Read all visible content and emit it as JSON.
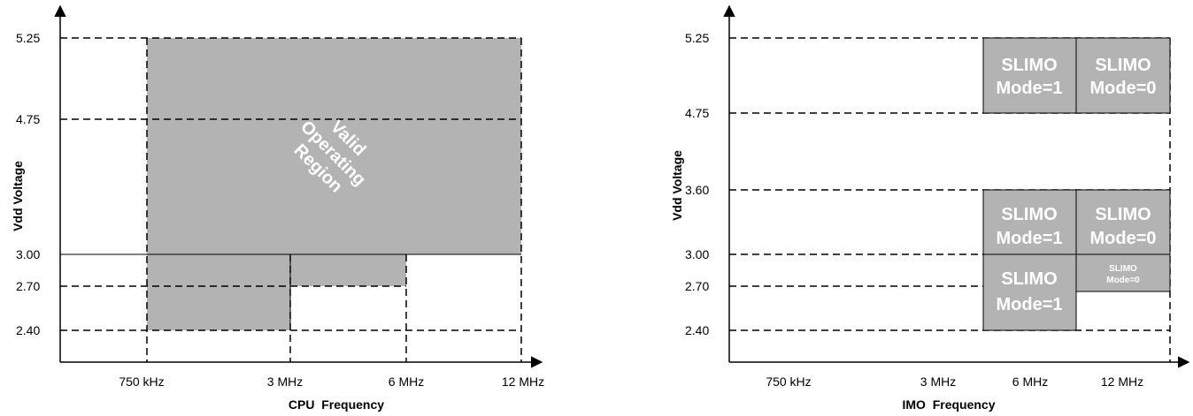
{
  "colors": {
    "region_fill": "#b3b3b3",
    "line": "#000000",
    "text_on_region": "#ffffff"
  },
  "cpu_chart": {
    "ylabel": "Vdd Voltage",
    "xlabel": "CPU  Frequency",
    "yticks": [
      "5.25",
      "4.75",
      "3.00",
      "2.70",
      "2.40"
    ],
    "xticks": [
      "750 kHz",
      "3 MHz",
      "6 MHz",
      "12 MHz"
    ],
    "region_label": [
      "Valid",
      "Operating",
      "Region"
    ]
  },
  "imo_chart": {
    "ylabel": "Vdd Voltage",
    "xlabel": "IMO  Frequency",
    "yticks": [
      "5.25",
      "4.75",
      "3.60",
      "3.00",
      "2.70",
      "2.40"
    ],
    "xticks": [
      "750 kHz",
      "3 MHz",
      "6 MHz",
      "12 MHz"
    ],
    "regions": {
      "top_left": [
        "SLIMO",
        "Mode=1"
      ],
      "top_right": [
        "SLIMO",
        "Mode=0"
      ],
      "mid_left": [
        "SLIMO",
        "Mode=1"
      ],
      "mid_right": [
        "SLIMO",
        "Mode=0"
      ],
      "low_left": [
        "SLIMO",
        "Mode=1"
      ],
      "low_right": [
        "SLIMO",
        "Mode=0"
      ]
    }
  }
}
